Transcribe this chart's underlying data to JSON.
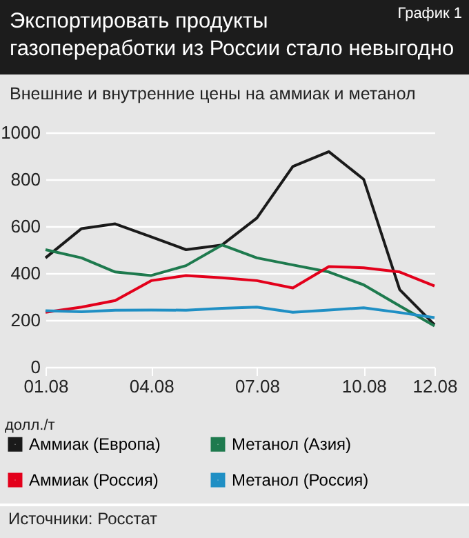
{
  "chart_data": {
    "type": "line",
    "title": "Экспортировать продукты\nгазопереработки из России стало невыгодно",
    "subtitle": "Внешние и внутренние цены на аммиак и метанол",
    "ylabel": "долл./т",
    "annotations": [
      "График 1",
      "Источники: Росстат"
    ],
    "x": [
      "2008-01",
      "2008-02",
      "2008-03",
      "2008-04",
      "2008-05",
      "2008-06",
      "2008-07",
      "2008-08",
      "2008-09",
      "2008-10",
      "2008-11",
      "2008-12"
    ],
    "series": [
      {
        "name": "Аммиак (Европа)",
        "color": "#1a1a1a",
        "values": [
          465,
          590,
          610,
          555,
          500,
          520,
          635,
          855,
          918,
          800,
          330,
          180
        ]
      },
      {
        "name": "Метанол (Азия)",
        "color": "#1e7a4e",
        "values": [
          500,
          465,
          405,
          390,
          432,
          520,
          465,
          435,
          405,
          350,
          260,
          175
        ]
      },
      {
        "name": "Аммиак (Россия)",
        "color": "#e3001b",
        "values": [
          233,
          255,
          283,
          368,
          390,
          380,
          368,
          337,
          428,
          423,
          405,
          345
        ]
      },
      {
        "name": "Метанол (Россия)",
        "color": "#1f8fc4",
        "values": [
          240,
          235,
          242,
          243,
          242,
          250,
          255,
          233,
          243,
          252,
          232,
          210
        ]
      }
    ],
    "xlim": [
      "2008-01",
      "2008-12"
    ],
    "xticks": [
      {
        "value": "2008-01",
        "label": "01.08"
      },
      {
        "value": "2008-04",
        "label": "04.08"
      },
      {
        "value": "2008-07",
        "label": "07.08"
      },
      {
        "value": "2008-10",
        "label": "10.08"
      },
      {
        "value": "2008-12",
        "label": "12.08"
      }
    ],
    "ylim": [
      0,
      1000
    ],
    "yticks": [
      0,
      200,
      400,
      600,
      800,
      1000
    ],
    "grid": "y",
    "legend": "bottom",
    "line_style": "solid",
    "marker": "none"
  }
}
